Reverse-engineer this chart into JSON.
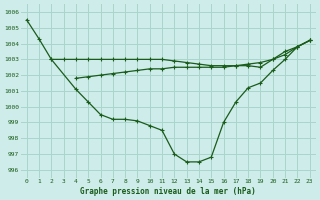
{
  "bg_color": "#ceecea",
  "grid_color": "#a8d5cc",
  "line_color": "#1a5c1a",
  "marker_color": "#1a5c1a",
  "x_ticks": [
    0,
    1,
    2,
    3,
    4,
    5,
    6,
    7,
    8,
    9,
    10,
    11,
    12,
    13,
    14,
    15,
    16,
    17,
    18,
    19,
    20,
    21,
    22,
    23
  ],
  "xlabel": "Graphe pression niveau de la mer (hPa)",
  "ylim": [
    995.5,
    1006.5
  ],
  "y_ticks": [
    996,
    997,
    998,
    999,
    1000,
    1001,
    1002,
    1003,
    1004,
    1005,
    1006
  ],
  "series1_x": [
    2,
    3,
    4,
    5,
    6,
    7,
    8,
    9,
    10,
    11,
    12,
    13,
    14,
    15,
    16,
    17,
    18,
    19,
    20,
    21,
    22,
    23
  ],
  "series1_y": [
    1003.0,
    1003.0,
    1003.0,
    1003.0,
    1003.0,
    1003.0,
    1003.0,
    1003.0,
    1003.0,
    1003.0,
    1002.9,
    1002.8,
    1002.7,
    1002.6,
    1002.6,
    1002.6,
    1002.6,
    1002.5,
    1003.0,
    1003.5,
    1003.8,
    1004.2
  ],
  "series2_x": [
    4,
    5,
    6,
    7,
    8,
    9,
    10,
    11,
    12,
    13,
    14,
    15,
    16,
    17,
    18,
    19,
    20,
    21,
    22,
    23
  ],
  "series2_y": [
    1001.8,
    1001.9,
    1002.0,
    1002.1,
    1002.2,
    1002.3,
    1002.4,
    1002.4,
    1002.5,
    1002.5,
    1002.5,
    1002.5,
    1002.5,
    1002.6,
    1002.7,
    1002.8,
    1003.0,
    1003.3,
    1003.8,
    1004.2
  ],
  "series3_x": [
    0,
    1,
    2,
    4,
    5,
    6,
    7,
    8,
    9,
    10,
    11,
    12,
    13,
    14,
    15,
    16,
    17,
    18,
    19,
    20,
    21,
    22,
    23
  ],
  "series3_y": [
    1005.5,
    1004.3,
    1003.0,
    1001.1,
    1000.3,
    999.5,
    999.2,
    999.2,
    999.1,
    998.8,
    998.5,
    997.0,
    996.5,
    996.5,
    996.8,
    999.0,
    1000.3,
    1001.2,
    1001.5,
    1002.3,
    1003.0,
    1003.8,
    1004.2
  ]
}
